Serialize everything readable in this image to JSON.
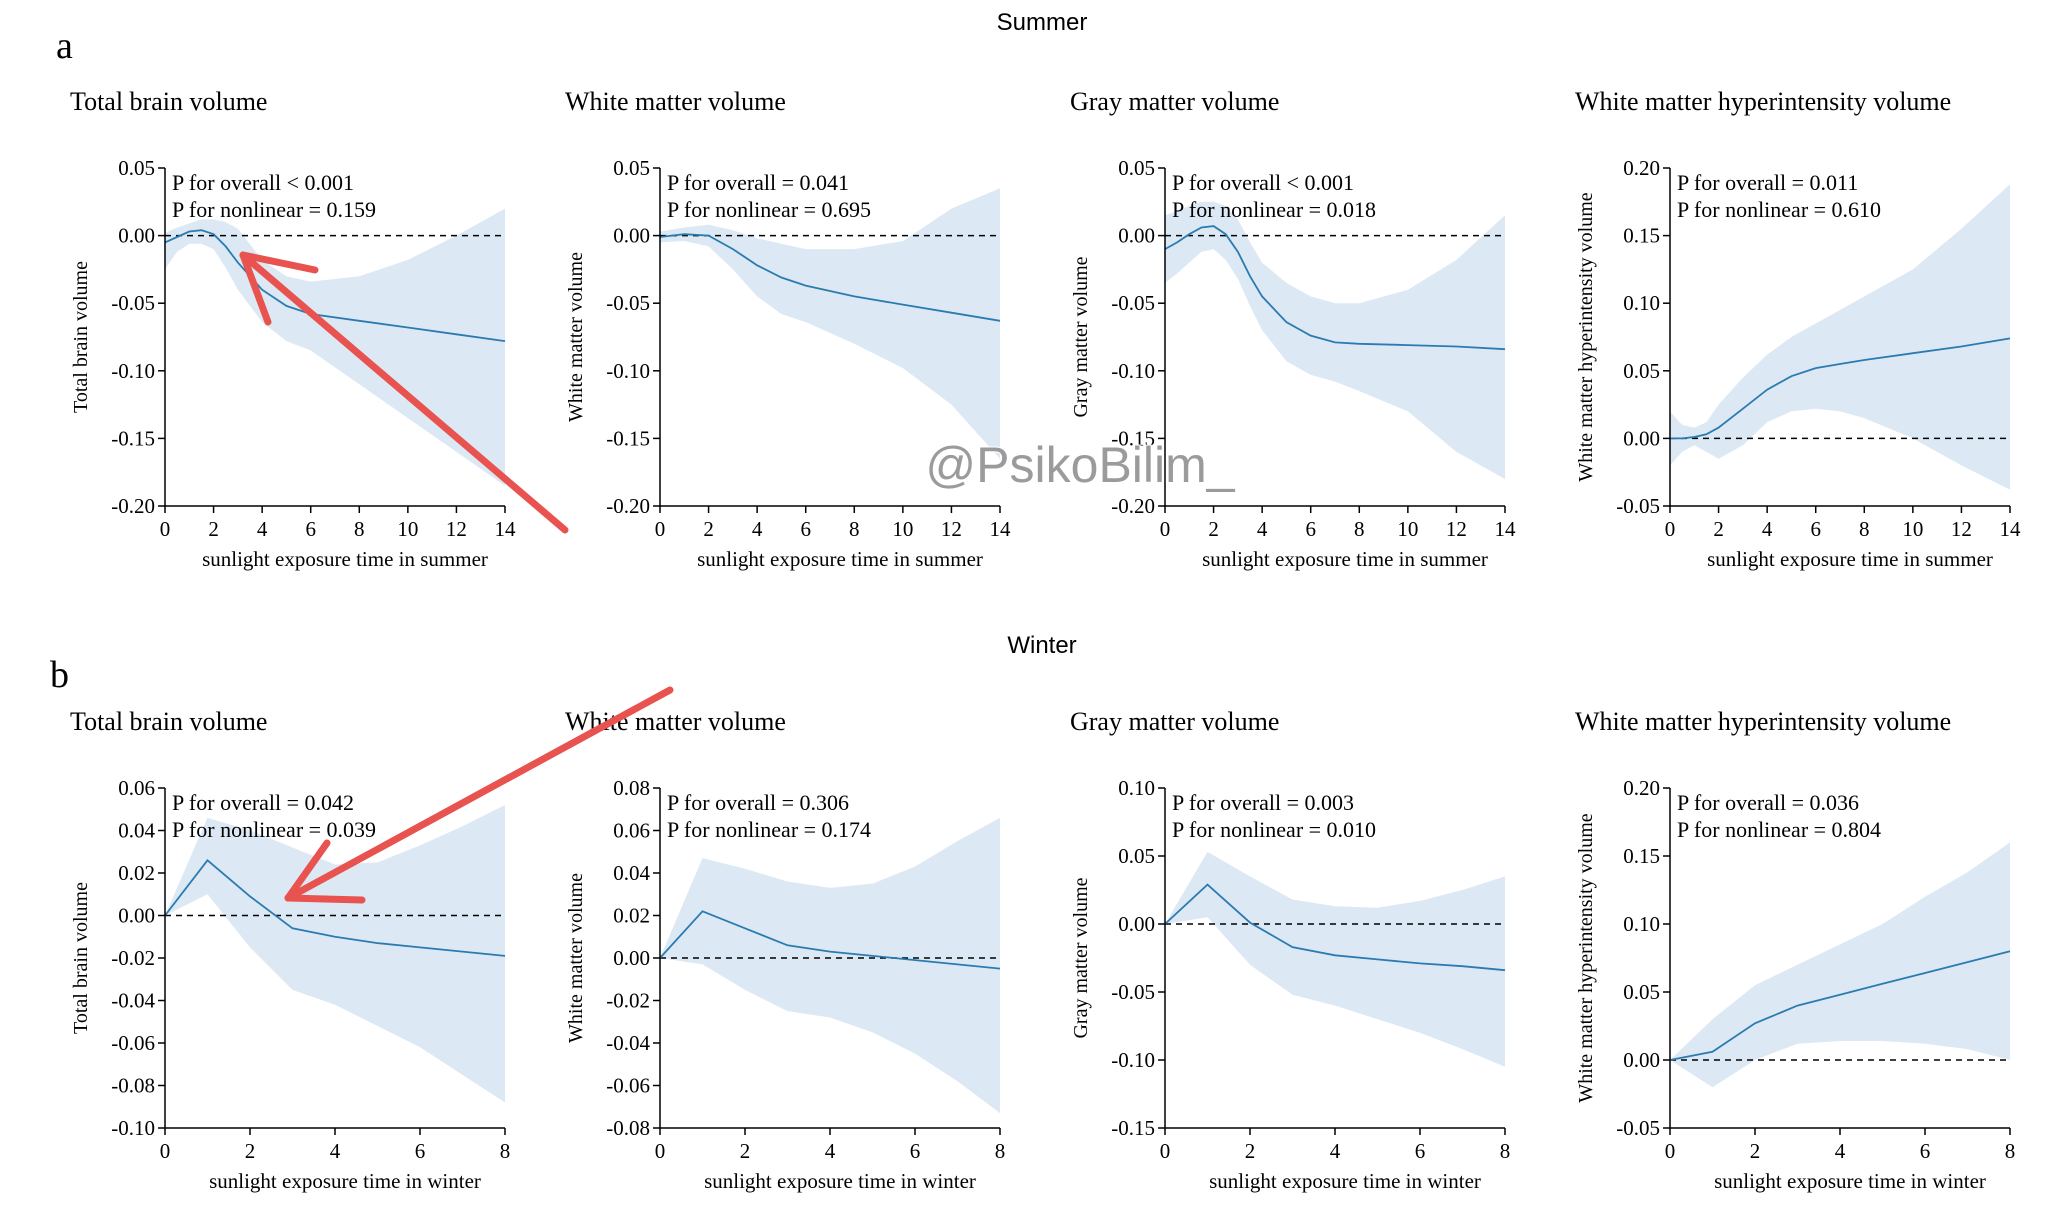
{
  "figure": {
    "section_a": {
      "letter": "a",
      "title": "Summer"
    },
    "section_b": {
      "letter": "b",
      "title": "Winter"
    },
    "watermark": "@PsikoBilim_",
    "colors": {
      "line": "#2b7bb0",
      "band": "#dce9f4",
      "arrow": "#e8534f",
      "axis": "#000000"
    }
  },
  "chart_data": [
    {
      "id": "a1",
      "type": "line",
      "title": "Total brain volume",
      "xlabel": "sunlight exposure time in summer",
      "ylabel": "Total brain volume",
      "xlim": [
        0,
        14
      ],
      "xticks": [
        0,
        2,
        4,
        6,
        8,
        10,
        12,
        14
      ],
      "xtick_labels": [
        "0",
        "2",
        "4",
        "6",
        "8",
        "10",
        "12",
        "14"
      ],
      "ylim": [
        -0.2,
        0.05
      ],
      "yticks": [
        0.05,
        0.0,
        -0.05,
        -0.1,
        -0.15,
        -0.2
      ],
      "ytick_labels": [
        "0.05",
        "0.00",
        "-0.05",
        "-0.10",
        "-0.15",
        "-0.20"
      ],
      "annotations": [
        "P for overall < 0.001",
        "P for nonlinear = 0.159"
      ],
      "reference_line": 0,
      "x": [
        0,
        0.5,
        1,
        1.5,
        2,
        2.5,
        3,
        4,
        5,
        6,
        8,
        10,
        12,
        14
      ],
      "y": [
        -0.005,
        -0.001,
        0.003,
        0.004,
        0.001,
        -0.008,
        -0.02,
        -0.04,
        -0.052,
        -0.058,
        -0.063,
        -0.068,
        -0.073,
        -0.078
      ],
      "lower": [
        -0.025,
        -0.012,
        -0.006,
        -0.006,
        -0.01,
        -0.024,
        -0.04,
        -0.064,
        -0.078,
        -0.085,
        -0.11,
        -0.135,
        -0.16,
        -0.185
      ],
      "upper": [
        0.002,
        0.006,
        0.009,
        0.012,
        0.012,
        0.01,
        0.005,
        -0.018,
        -0.03,
        -0.034,
        -0.03,
        -0.018,
        0.0,
        0.02
      ]
    },
    {
      "id": "a2",
      "type": "line",
      "title": "White matter volume",
      "xlabel": "sunlight exposure time in summer",
      "ylabel": "White matter volume",
      "xlim": [
        0,
        14
      ],
      "xticks": [
        0,
        2,
        4,
        6,
        8,
        10,
        12,
        14
      ],
      "xtick_labels": [
        "0",
        "2",
        "4",
        "6",
        "8",
        "10",
        "12",
        "14"
      ],
      "ylim": [
        -0.2,
        0.05
      ],
      "yticks": [
        0.05,
        0.0,
        -0.05,
        -0.1,
        -0.15,
        -0.2
      ],
      "ytick_labels": [
        "0.05",
        "0.00",
        "-0.05",
        "-0.10",
        "-0.15",
        "-0.20"
      ],
      "annotations": [
        "P for overall = 0.041",
        "P for nonlinear = 0.695"
      ],
      "reference_line": 0,
      "x": [
        0,
        1,
        2,
        3,
        4,
        5,
        6,
        8,
        10,
        12,
        14
      ],
      "y": [
        -0.001,
        0.001,
        0.0,
        -0.01,
        -0.022,
        -0.031,
        -0.037,
        -0.045,
        -0.051,
        -0.057,
        -0.063
      ],
      "lower": [
        -0.005,
        -0.004,
        -0.008,
        -0.025,
        -0.045,
        -0.058,
        -0.064,
        -0.08,
        -0.098,
        -0.125,
        -0.165
      ],
      "upper": [
        0.003,
        0.006,
        0.008,
        0.004,
        -0.002,
        -0.006,
        -0.01,
        -0.01,
        -0.004,
        0.02,
        0.035
      ]
    },
    {
      "id": "a3",
      "type": "line",
      "title": "Gray matter volume",
      "xlabel": "sunlight exposure time in summer",
      "ylabel": "Gray matter volume",
      "xlim": [
        0,
        14
      ],
      "xticks": [
        0,
        2,
        4,
        6,
        8,
        10,
        12,
        14
      ],
      "xtick_labels": [
        "0",
        "2",
        "4",
        "6",
        "8",
        "10",
        "12",
        "14"
      ],
      "ylim": [
        -0.2,
        0.05
      ],
      "yticks": [
        0.05,
        0.0,
        -0.05,
        -0.1,
        -0.15,
        -0.2
      ],
      "ytick_labels": [
        "0.05",
        "0.00",
        "-0.05",
        "-0.10",
        "-0.15",
        "-0.20"
      ],
      "annotations": [
        "P for overall < 0.001",
        "P for nonlinear = 0.018"
      ],
      "reference_line": 0,
      "x": [
        0,
        0.5,
        1,
        1.5,
        2,
        2.5,
        3,
        3.5,
        4,
        5,
        6,
        7,
        8,
        10,
        12,
        14
      ],
      "y": [
        -0.01,
        -0.005,
        0.001,
        0.006,
        0.007,
        0.001,
        -0.012,
        -0.03,
        -0.045,
        -0.064,
        -0.074,
        -0.079,
        -0.08,
        -0.081,
        -0.082,
        -0.084
      ],
      "lower": [
        -0.035,
        -0.028,
        -0.02,
        -0.012,
        -0.01,
        -0.018,
        -0.032,
        -0.052,
        -0.07,
        -0.093,
        -0.103,
        -0.108,
        -0.115,
        -0.13,
        -0.16,
        -0.18
      ],
      "upper": [
        0.015,
        0.018,
        0.022,
        0.025,
        0.025,
        0.022,
        0.012,
        -0.005,
        -0.02,
        -0.035,
        -0.045,
        -0.05,
        -0.05,
        -0.04,
        -0.018,
        0.015
      ]
    },
    {
      "id": "a4",
      "type": "line",
      "title": "White matter hyperintensity volume",
      "xlabel": "sunlight exposure time in summer",
      "ylabel": "White matter hyperintensity volume",
      "xlim": [
        0,
        14
      ],
      "xticks": [
        0,
        2,
        4,
        6,
        8,
        10,
        12,
        14
      ],
      "xtick_labels": [
        "0",
        "2",
        "4",
        "6",
        "8",
        "10",
        "12",
        "14"
      ],
      "ylim": [
        -0.05,
        0.2
      ],
      "yticks": [
        0.2,
        0.15,
        0.1,
        0.05,
        0.0,
        -0.05
      ],
      "ytick_labels": [
        "0.20",
        "0.15",
        "0.10",
        "0.05",
        "0.00",
        "-0.05"
      ],
      "annotations": [
        "P for overall = 0.011",
        "P for nonlinear = 0.610"
      ],
      "reference_line": 0,
      "x": [
        0,
        0.5,
        1,
        1.5,
        2,
        3,
        4,
        5,
        6,
        7,
        8,
        10,
        12,
        14
      ],
      "y": [
        0.0,
        0.0,
        0.001,
        0.003,
        0.008,
        0.022,
        0.036,
        0.046,
        0.052,
        0.055,
        0.058,
        0.063,
        0.068,
        0.074
      ],
      "lower": [
        -0.02,
        -0.01,
        -0.005,
        -0.01,
        -0.015,
        -0.005,
        0.012,
        0.02,
        0.022,
        0.02,
        0.015,
        0.0,
        -0.02,
        -0.038
      ],
      "upper": [
        0.02,
        0.01,
        0.008,
        0.012,
        0.025,
        0.045,
        0.062,
        0.075,
        0.085,
        0.095,
        0.105,
        0.125,
        0.155,
        0.188
      ]
    },
    {
      "id": "b1",
      "type": "line",
      "title": "Total brain volume",
      "xlabel": "sunlight exposure time in winter",
      "ylabel": "Total brain volume",
      "xlim": [
        0,
        8
      ],
      "xticks": [
        0,
        2,
        4,
        6,
        8
      ],
      "xtick_labels": [
        "0",
        "2",
        "4",
        "6",
        "8"
      ],
      "ylim": [
        -0.1,
        0.06
      ],
      "yticks": [
        0.06,
        0.04,
        0.02,
        0.0,
        -0.02,
        -0.04,
        -0.06,
        -0.08,
        -0.1
      ],
      "ytick_labels": [
        "0.06",
        "0.04",
        "0.02",
        "0.00",
        "-0.02",
        "-0.04",
        "-0.06",
        "-0.08",
        "-0.10"
      ],
      "annotations": [
        "P for overall = 0.042",
        "P for nonlinear = 0.039"
      ],
      "reference_line": 0,
      "x": [
        0,
        1,
        2,
        3,
        4,
        5,
        6,
        7,
        8
      ],
      "y": [
        0.0,
        0.026,
        0.009,
        -0.006,
        -0.01,
        -0.013,
        -0.015,
        -0.017,
        -0.019
      ],
      "lower": [
        0.0,
        0.01,
        -0.015,
        -0.035,
        -0.042,
        -0.052,
        -0.062,
        -0.075,
        -0.088
      ],
      "upper": [
        0.0,
        0.046,
        0.04,
        0.032,
        0.024,
        0.025,
        0.033,
        0.042,
        0.052
      ]
    },
    {
      "id": "b2",
      "type": "line",
      "title": "White matter volume",
      "xlabel": "sunlight exposure time in winter",
      "ylabel": "White matter volume",
      "xlim": [
        0,
        8
      ],
      "xticks": [
        0,
        2,
        4,
        6,
        8
      ],
      "xtick_labels": [
        "0",
        "2",
        "4",
        "6",
        "8"
      ],
      "ylim": [
        -0.08,
        0.08
      ],
      "yticks": [
        0.08,
        0.06,
        0.04,
        0.02,
        0.0,
        -0.02,
        -0.04,
        -0.06,
        -0.08
      ],
      "ytick_labels": [
        "0.08",
        "0.06",
        "0.04",
        "0.02",
        "0.00",
        "-0.02",
        "-0.04",
        "-0.06",
        "-0.08"
      ],
      "annotations": [
        "P for overall = 0.306",
        "P for nonlinear = 0.174"
      ],
      "reference_line": 0,
      "x": [
        0,
        1,
        2,
        3,
        4,
        5,
        6,
        7,
        8
      ],
      "y": [
        0.0,
        0.022,
        0.014,
        0.006,
        0.003,
        0.001,
        -0.001,
        -0.003,
        -0.005
      ],
      "lower": [
        0.0,
        -0.003,
        -0.015,
        -0.025,
        -0.028,
        -0.035,
        -0.045,
        -0.058,
        -0.073
      ],
      "upper": [
        0.0,
        0.047,
        0.042,
        0.036,
        0.033,
        0.035,
        0.043,
        0.055,
        0.066
      ]
    },
    {
      "id": "b3",
      "type": "line",
      "title": "Gray matter volume",
      "xlabel": "sunlight exposure time in winter",
      "ylabel": "Gray matter volume",
      "xlim": [
        0,
        8
      ],
      "xticks": [
        0,
        2,
        4,
        6,
        8
      ],
      "xtick_labels": [
        "0",
        "2",
        "4",
        "6",
        "8"
      ],
      "ylim": [
        -0.15,
        0.1
      ],
      "yticks": [
        0.1,
        0.05,
        0.0,
        -0.05,
        -0.1,
        -0.15
      ],
      "ytick_labels": [
        "0.10",
        "0.05",
        "0.00",
        "-0.05",
        "-0.10",
        "-0.15"
      ],
      "annotations": [
        "P for overall = 0.003",
        "P for nonlinear = 0.010"
      ],
      "reference_line": 0,
      "x": [
        0,
        1,
        2,
        3,
        4,
        5,
        6,
        7,
        8
      ],
      "y": [
        0.0,
        0.029,
        0.001,
        -0.017,
        -0.023,
        -0.026,
        -0.029,
        -0.031,
        -0.034
      ],
      "lower": [
        0.0,
        0.005,
        -0.03,
        -0.052,
        -0.06,
        -0.07,
        -0.08,
        -0.092,
        -0.105
      ],
      "upper": [
        0.0,
        0.053,
        0.035,
        0.018,
        0.013,
        0.012,
        0.017,
        0.025,
        0.035
      ]
    },
    {
      "id": "b4",
      "type": "line",
      "title": "White matter hyperintensity volume",
      "xlabel": "sunlight exposure time in winter",
      "ylabel": "White matter hyperintensity volume",
      "xlim": [
        0,
        8
      ],
      "xticks": [
        0,
        2,
        4,
        6,
        8
      ],
      "xtick_labels": [
        "0",
        "2",
        "4",
        "6",
        "8"
      ],
      "ylim": [
        -0.05,
        0.2
      ],
      "yticks": [
        0.2,
        0.15,
        0.1,
        0.05,
        0.0,
        -0.05
      ],
      "ytick_labels": [
        "0.20",
        "0.15",
        "0.10",
        "0.05",
        "0.00",
        "-0.05"
      ],
      "annotations": [
        "P for overall = 0.036",
        "P for nonlinear = 0.804"
      ],
      "reference_line": 0,
      "x": [
        0,
        1,
        2,
        3,
        4,
        5,
        6,
        7,
        8
      ],
      "y": [
        0.0,
        0.006,
        0.027,
        0.04,
        0.048,
        0.056,
        0.064,
        0.072,
        0.08
      ],
      "lower": [
        0.0,
        -0.02,
        0.0,
        0.012,
        0.014,
        0.014,
        0.012,
        0.008,
        0.0
      ],
      "upper": [
        0.0,
        0.03,
        0.055,
        0.07,
        0.085,
        0.1,
        0.12,
        0.138,
        0.16
      ]
    }
  ]
}
